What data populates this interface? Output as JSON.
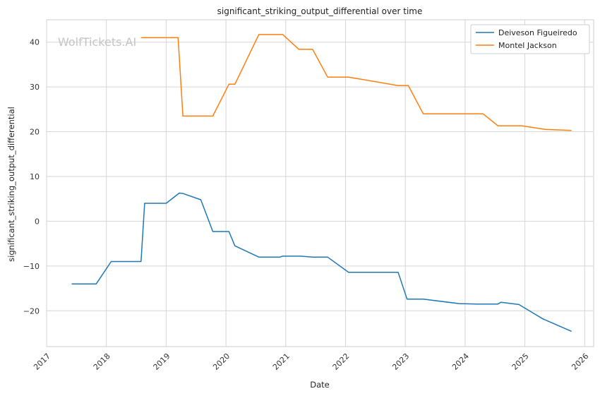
{
  "watermark": "WolfTickets.AI",
  "chart_data": {
    "type": "line",
    "title": "significant_striking_output_differential over time",
    "xlabel": "Date",
    "ylabel": "significant_striking_output_differential",
    "xlim": [
      2017.0,
      2026.15
    ],
    "ylim": [
      -28,
      45
    ],
    "x_ticks": [
      2017,
      2018,
      2019,
      2020,
      2021,
      2022,
      2023,
      2024,
      2025,
      2026
    ],
    "x_tick_labels": [
      "2017",
      "2018",
      "2019",
      "2020",
      "2021",
      "2022",
      "2023",
      "2024",
      "2025",
      "2026"
    ],
    "y_ticks": [
      -20,
      -10,
      0,
      10,
      20,
      30,
      40
    ],
    "y_tick_labels": [
      "−20",
      "−10",
      "0",
      "10",
      "20",
      "30",
      "40"
    ],
    "grid": true,
    "legend_position": "top-right",
    "series": [
      {
        "name": "Deiveson Figueiredo",
        "color": "#1f77b4",
        "x": [
          2017.42,
          2017.83,
          2018.08,
          2018.58,
          2018.64,
          2019.0,
          2019.22,
          2019.28,
          2019.58,
          2019.78,
          2020.05,
          2020.15,
          2020.55,
          2020.9,
          2020.95,
          2021.25,
          2021.45,
          2021.7,
          2022.05,
          2022.4,
          2022.88,
          2023.03,
          2023.3,
          2023.9,
          2024.2,
          2024.55,
          2024.6,
          2024.65,
          2024.9,
          2025.3,
          2025.78
        ],
        "y": [
          -14.0,
          -14.0,
          -9.0,
          -9.0,
          4.0,
          4.0,
          6.3,
          6.2,
          4.8,
          -2.3,
          -2.3,
          -5.5,
          -8.0,
          -8.0,
          -7.8,
          -7.8,
          -8.0,
          -8.0,
          -11.4,
          -11.4,
          -11.4,
          -17.4,
          -17.4,
          -18.4,
          -18.5,
          -18.5,
          -18.1,
          -18.2,
          -18.6,
          -21.8,
          -24.6
        ]
      },
      {
        "name": "Montel Jackson",
        "color": "#ff7f0e",
        "x": [
          2018.58,
          2019.2,
          2019.28,
          2019.78,
          2020.05,
          2020.15,
          2020.55,
          2020.95,
          2021.22,
          2021.45,
          2021.7,
          2022.05,
          2022.88,
          2023.05,
          2023.3,
          2023.95,
          2024.3,
          2024.55,
          2024.95,
          2025.35,
          2025.78
        ],
        "y": [
          41.0,
          41.0,
          23.5,
          23.5,
          30.6,
          30.6,
          41.7,
          41.7,
          38.4,
          38.4,
          32.2,
          32.2,
          30.3,
          30.3,
          24.0,
          24.0,
          24.0,
          21.3,
          21.3,
          20.5,
          20.3
        ]
      }
    ]
  }
}
